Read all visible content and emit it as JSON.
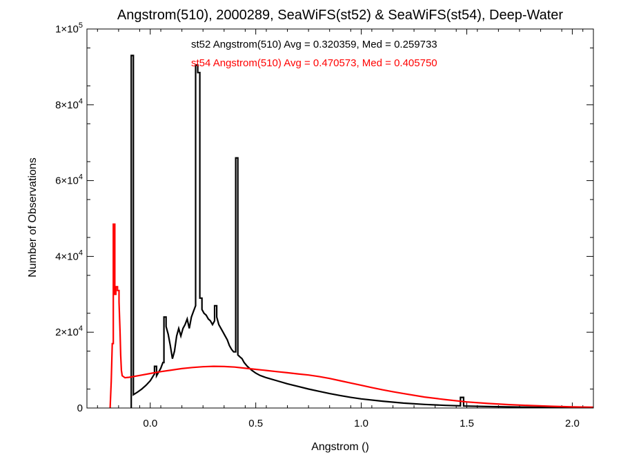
{
  "chart_data": {
    "type": "line",
    "title": "Angstrom(510), 2000289, SeaWiFS(st52) & SeaWiFS(st54), Deep-Water",
    "xlabel": "Angstrom ()",
    "ylabel": "Number of Observations",
    "xlim": [
      -0.3,
      2.1
    ],
    "ylim": [
      0,
      100000
    ],
    "x_ticks": [
      {
        "value": 0.0,
        "label": "0.0"
      },
      {
        "value": 0.5,
        "label": "0.5"
      },
      {
        "value": 1.0,
        "label": "1.0"
      },
      {
        "value": 1.5,
        "label": "1.5"
      },
      {
        "value": 2.0,
        "label": "2.0"
      }
    ],
    "y_ticks": [
      {
        "value": 0,
        "mant": "0",
        "exp": ""
      },
      {
        "value": 20000,
        "mant": "2×10",
        "exp": "4"
      },
      {
        "value": 40000,
        "mant": "4×10",
        "exp": "4"
      },
      {
        "value": 60000,
        "mant": "6×10",
        "exp": "4"
      },
      {
        "value": 80000,
        "mant": "8×10",
        "exp": "4"
      },
      {
        "value": 100000,
        "mant": "1×10",
        "exp": "5"
      }
    ],
    "grid": false,
    "legend": "top-center",
    "series": [
      {
        "name": "st52 Angstrom(510) Avg = 0.320359, Med = 0.259733",
        "color": "#000000",
        "points": [
          [
            -0.09,
            0
          ],
          [
            -0.09,
            93000
          ],
          [
            -0.08,
            93000
          ],
          [
            -0.08,
            3500
          ],
          [
            -0.06,
            4200
          ],
          [
            -0.04,
            5000
          ],
          [
            -0.02,
            6000
          ],
          [
            0.0,
            7200
          ],
          [
            0.02,
            9000
          ],
          [
            0.02,
            11000
          ],
          [
            0.03,
            11000
          ],
          [
            0.03,
            8500
          ],
          [
            0.04,
            9500
          ],
          [
            0.05,
            10500
          ],
          [
            0.06,
            12000
          ],
          [
            0.065,
            12000
          ],
          [
            0.065,
            24000
          ],
          [
            0.075,
            24000
          ],
          [
            0.075,
            21500
          ],
          [
            0.085,
            19500
          ],
          [
            0.095,
            16500
          ],
          [
            0.105,
            13000
          ],
          [
            0.115,
            15000
          ],
          [
            0.125,
            19000
          ],
          [
            0.135,
            21000
          ],
          [
            0.145,
            19000
          ],
          [
            0.155,
            21000
          ],
          [
            0.165,
            22000
          ],
          [
            0.175,
            23500
          ],
          [
            0.185,
            21000
          ],
          [
            0.195,
            24000
          ],
          [
            0.205,
            25500
          ],
          [
            0.215,
            27000
          ],
          [
            0.215,
            90500
          ],
          [
            0.225,
            90500
          ],
          [
            0.225,
            88500
          ],
          [
            0.235,
            88500
          ],
          [
            0.235,
            29000
          ],
          [
            0.245,
            29000
          ],
          [
            0.245,
            26000
          ],
          [
            0.255,
            25000
          ],
          [
            0.265,
            24500
          ],
          [
            0.275,
            23500
          ],
          [
            0.285,
            23000
          ],
          [
            0.295,
            22000
          ],
          [
            0.305,
            23000
          ],
          [
            0.305,
            27000
          ],
          [
            0.315,
            27000
          ],
          [
            0.315,
            24000
          ],
          [
            0.325,
            22000
          ],
          [
            0.335,
            21000
          ],
          [
            0.345,
            20000
          ],
          [
            0.355,
            19000
          ],
          [
            0.365,
            18000
          ],
          [
            0.375,
            16500
          ],
          [
            0.385,
            15500
          ],
          [
            0.395,
            14800
          ],
          [
            0.405,
            14800
          ],
          [
            0.405,
            66000
          ],
          [
            0.415,
            66000
          ],
          [
            0.415,
            14000
          ],
          [
            0.425,
            13500
          ],
          [
            0.435,
            13000
          ],
          [
            0.445,
            12000
          ],
          [
            0.46,
            11000
          ],
          [
            0.48,
            10000
          ],
          [
            0.5,
            9200
          ],
          [
            0.52,
            8600
          ],
          [
            0.55,
            8000
          ],
          [
            0.6,
            7200
          ],
          [
            0.65,
            6400
          ],
          [
            0.7,
            5700
          ],
          [
            0.75,
            5000
          ],
          [
            0.8,
            4400
          ],
          [
            0.85,
            3800
          ],
          [
            0.9,
            3300
          ],
          [
            0.95,
            2800
          ],
          [
            1.0,
            2400
          ],
          [
            1.1,
            1800
          ],
          [
            1.2,
            1300
          ],
          [
            1.3,
            950
          ],
          [
            1.4,
            700
          ],
          [
            1.47,
            560
          ],
          [
            1.47,
            2800
          ],
          [
            1.485,
            2800
          ],
          [
            1.485,
            520
          ],
          [
            1.6,
            380
          ],
          [
            1.7,
            290
          ],
          [
            1.8,
            220
          ],
          [
            1.9,
            160
          ],
          [
            2.0,
            110
          ],
          [
            2.1,
            80
          ]
        ]
      },
      {
        "name": "st54 Angstrom(510) Avg = 0.470573, Med = 0.405750",
        "color": "#ff0000",
        "points": [
          [
            -0.19,
            0
          ],
          [
            -0.185,
            7000
          ],
          [
            -0.18,
            17000
          ],
          [
            -0.175,
            17000
          ],
          [
            -0.175,
            48500
          ],
          [
            -0.168,
            48500
          ],
          [
            -0.168,
            30000
          ],
          [
            -0.163,
            30000
          ],
          [
            -0.163,
            32000
          ],
          [
            -0.155,
            32000
          ],
          [
            -0.155,
            31000
          ],
          [
            -0.148,
            31000
          ],
          [
            -0.148,
            28000
          ],
          [
            -0.143,
            20000
          ],
          [
            -0.14,
            14000
          ],
          [
            -0.137,
            10000
          ],
          [
            -0.133,
            8500
          ],
          [
            -0.12,
            8000
          ],
          [
            -0.1,
            8100
          ],
          [
            -0.05,
            8600
          ],
          [
            0.0,
            9100
          ],
          [
            0.05,
            9600
          ],
          [
            0.1,
            10000
          ],
          [
            0.15,
            10400
          ],
          [
            0.2,
            10700
          ],
          [
            0.25,
            10900
          ],
          [
            0.3,
            11000
          ],
          [
            0.35,
            10950
          ],
          [
            0.4,
            10800
          ],
          [
            0.45,
            10500
          ],
          [
            0.5,
            10200
          ],
          [
            0.55,
            9900
          ],
          [
            0.6,
            9600
          ],
          [
            0.65,
            9300
          ],
          [
            0.7,
            9000
          ],
          [
            0.75,
            8700
          ],
          [
            0.8,
            8300
          ],
          [
            0.85,
            7800
          ],
          [
            0.9,
            7200
          ],
          [
            0.95,
            6600
          ],
          [
            1.0,
            6000
          ],
          [
            1.05,
            5400
          ],
          [
            1.1,
            4800
          ],
          [
            1.15,
            4300
          ],
          [
            1.2,
            3800
          ],
          [
            1.3,
            2900
          ],
          [
            1.4,
            2200
          ],
          [
            1.5,
            1600
          ],
          [
            1.6,
            1200
          ],
          [
            1.7,
            900
          ],
          [
            1.8,
            650
          ],
          [
            1.9,
            450
          ],
          [
            2.0,
            300
          ],
          [
            2.1,
            220
          ]
        ]
      }
    ]
  }
}
